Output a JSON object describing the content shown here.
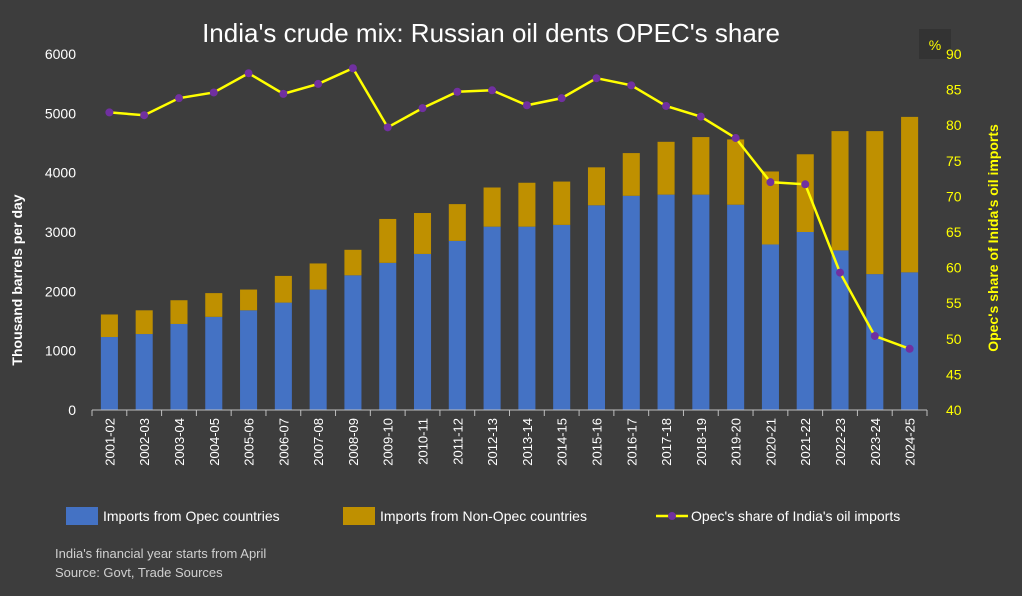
{
  "chart_data": {
    "type": "bar",
    "title": "India's crude mix: Russian oil dents OPEC's share",
    "ylabel": "Thousand barrels per day",
    "y2label": "Opec's share of Inida's oil imports",
    "y2unit": "%",
    "ylim": [
      0,
      6000
    ],
    "y2lim": [
      40,
      90
    ],
    "yticks": [
      "0",
      "1000",
      "2000",
      "3000",
      "4000",
      "5000",
      "6000"
    ],
    "y2ticks": [
      "40",
      "45",
      "50",
      "55",
      "60",
      "65",
      "70",
      "75",
      "80",
      "85",
      "90"
    ],
    "categories": [
      "2001-02",
      "2002-03",
      "2003-04",
      "2004-05",
      "2005-06",
      "2006-07",
      "2007-08",
      "2008-09",
      "2009-10",
      "2010-11",
      "2011-12",
      "2012-13",
      "2013-14",
      "2014-15",
      "2015-16",
      "2016-17",
      "2017-18",
      "2018-19",
      "2019-20",
      "2020-21",
      "2021-22",
      "2022-23",
      "2023-24",
      "2024-25"
    ],
    "series": [
      {
        "name": "Imports from Opec countries",
        "type": "bar",
        "stack": "imports",
        "color": "#4472c4",
        "values": [
          1230,
          1280,
          1450,
          1570,
          1680,
          1810,
          2030,
          2270,
          2480,
          2630,
          2850,
          3090,
          3090,
          3120,
          3450,
          3610,
          3630,
          3630,
          3460,
          2790,
          3000,
          2690,
          2290,
          2320
        ]
      },
      {
        "name": "Imports from Non-Opec countries",
        "type": "bar",
        "stack": "imports",
        "color": "#bf9000",
        "values": [
          380,
          400,
          400,
          400,
          350,
          450,
          440,
          430,
          740,
          690,
          620,
          660,
          740,
          730,
          640,
          720,
          890,
          970,
          1100,
          1230,
          1310,
          2010,
          2410,
          2620
        ]
      },
      {
        "name": "Opec's share of India's oil imports",
        "type": "line",
        "axis": "y2",
        "color": "#ffff00",
        "marker_color": "#7030a0",
        "values": [
          81.8,
          81.4,
          83.8,
          84.6,
          87.3,
          84.4,
          85.8,
          88.0,
          79.7,
          82.4,
          84.7,
          84.9,
          82.8,
          83.8,
          86.6,
          85.6,
          82.7,
          81.2,
          78.2,
          72.0,
          71.7,
          59.3,
          50.4,
          48.6
        ]
      }
    ],
    "legend_position": "bottom",
    "grid": false,
    "notes": [
      "India's financial year starts from April",
      "Source: Govt, Trade Sources"
    ]
  }
}
